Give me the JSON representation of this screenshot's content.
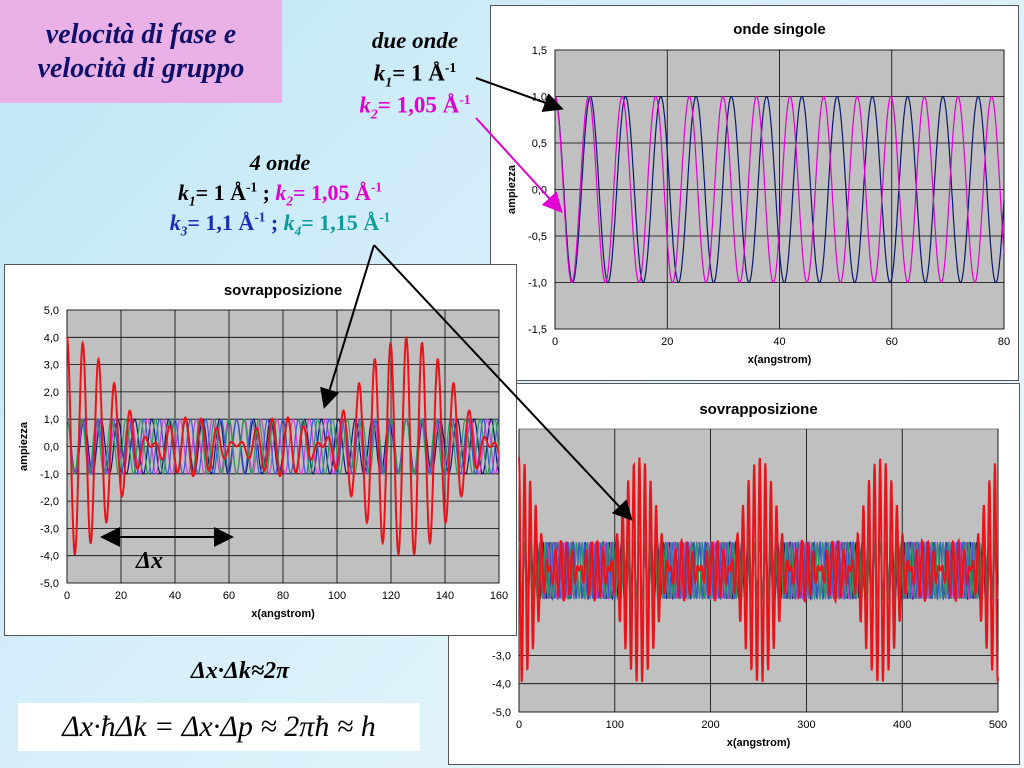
{
  "slide": {
    "title_line1": "velocità di fase e",
    "title_line2": "velocità di gruppo",
    "due_onde": {
      "heading": "due onde",
      "k1": {
        "k": "k",
        "sub": "1",
        "eq": "= 1 Å",
        "sup": "-1"
      },
      "k2": {
        "k": "k",
        "sub": "2",
        "eq": "= 1,05 Å",
        "sup": "-1"
      }
    },
    "quattro_onde": {
      "heading": "4 onde",
      "k1": {
        "k": "k",
        "sub": "1",
        "eq": "= 1 Å",
        "sup": "-1",
        "sep": " ;"
      },
      "k2": {
        "k": "k",
        "sub": "2",
        "eq": "= 1,05 Å",
        "sup": "-1"
      },
      "k3": {
        "k": "k",
        "sub": "3",
        "eq": "= 1,1 Å",
        "sup": "-1",
        "sep": " ;"
      },
      "k4": {
        "k": "k",
        "sub": "4",
        "eq": "= 1,15 Å",
        "sup": "-1"
      }
    },
    "delta_x_label": "Δx",
    "formula_uncertainty": "Δx·Δk≈2π",
    "formula_heisenberg": "Δx·ħΔk = Δx·Δp ≈ 2πħ ≈ h",
    "colors": {
      "title_bg": "#e9b1e6",
      "magenta": "#e000d0",
      "navy": "#0a1a6e",
      "red": "#e8141a",
      "blue": "#1a2bb5",
      "teal": "#0a9c9c",
      "plot_bg": "#c0c0c0"
    }
  },
  "chart_data": [
    {
      "id": "onde_singole",
      "type": "line",
      "title": "onde singole",
      "xlabel": "x(angstrom)",
      "ylabel": "ampiezza",
      "xlim": [
        0,
        80
      ],
      "ylim": [
        -1.5,
        1.5
      ],
      "xticks": [
        0,
        20,
        40,
        60,
        80
      ],
      "yticks": [
        "1,5",
        "1,0",
        "0,5",
        "0,0",
        "-0,5",
        "-1,0",
        "-1,5"
      ],
      "yticks_values": [
        1.5,
        1.0,
        0.5,
        0.0,
        -0.5,
        -1.0,
        -1.5
      ],
      "grid": true,
      "series": [
        {
          "formula": "cos(1.00*x)",
          "k": 1.0,
          "color": "#0a1a6e"
        },
        {
          "formula": "cos(1.05*x)",
          "k": 1.05,
          "color": "#e000d0"
        }
      ]
    },
    {
      "id": "sovrapposizione_4",
      "type": "line",
      "title": "sovrapposizione",
      "xlabel": "x(angstrom)",
      "ylabel": "ampiezza",
      "xlim": [
        0,
        160
      ],
      "ylim": [
        -5,
        5
      ],
      "xticks": [
        0,
        20,
        40,
        60,
        80,
        100,
        120,
        140,
        160
      ],
      "yticks": [
        "5,0",
        "4,0",
        "3,0",
        "2,0",
        "1,0",
        "0,0",
        "-1,0",
        "-2,0",
        "-3,0",
        "-4,0",
        "-5,0"
      ],
      "yticks_values": [
        5,
        4,
        3,
        2,
        1,
        0,
        -1,
        -2,
        -3,
        -4,
        -5
      ],
      "grid": true,
      "series": [
        {
          "formula": "cos(1.00*x)",
          "k": 1.0,
          "color": "#0a1a6e"
        },
        {
          "formula": "cos(1.05*x)",
          "k": 1.05,
          "color": "#d040d0"
        },
        {
          "formula": "cos(1.10*x)",
          "k": 1.1,
          "color": "#3a58d8"
        },
        {
          "formula": "cos(1.15*x)",
          "k": 1.15,
          "color": "#2a9a5a"
        },
        {
          "formula": "sum of the four cosines",
          "sum": true,
          "color": "#e8141a"
        }
      ]
    },
    {
      "id": "sovrapposizione_4_zoom_out",
      "type": "line",
      "title": "sovrapposizione",
      "xlabel": "x(angstrom)",
      "ylabel": "",
      "xlim": [
        0,
        500
      ],
      "ylim": [
        -5,
        5
      ],
      "xticks": [
        0,
        100,
        200,
        300,
        400,
        500
      ],
      "yticks": [
        "-3,0",
        "-4,0",
        "-5,0"
      ],
      "yticks_values": [
        -3,
        -4,
        -5
      ],
      "grid": true,
      "series": [
        {
          "formula": "cos(1.00*x)",
          "k": 1.0,
          "color": "#0a1a6e"
        },
        {
          "formula": "cos(1.05*x)",
          "k": 1.05,
          "color": "#d040d0"
        },
        {
          "formula": "cos(1.10*x)",
          "k": 1.1,
          "color": "#3a58d8"
        },
        {
          "formula": "cos(1.15*x)",
          "k": 1.15,
          "color": "#2a9a5a"
        },
        {
          "formula": "sum of the four cosines",
          "sum": true,
          "color": "#e8141a"
        }
      ]
    }
  ]
}
